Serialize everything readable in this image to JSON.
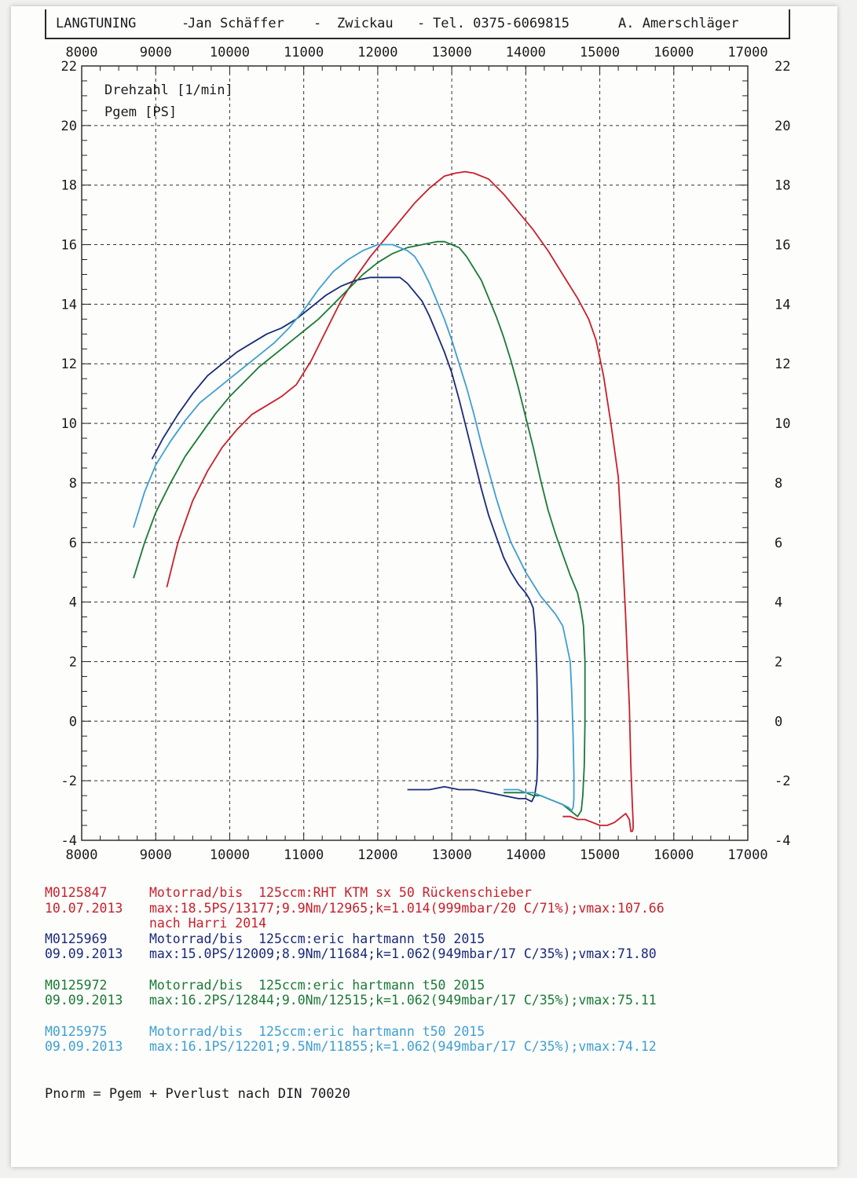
{
  "header": {
    "company": "LANGTUNING",
    "sep1": "-",
    "person": "Jan Schäffer",
    "sep2": "-",
    "city": "Zwickau",
    "sep3": "-",
    "phone": "Tel. 0375-6069815",
    "operator": "A. Amerschläger"
  },
  "chart_data": {
    "type": "line",
    "labels": [
      "Drehzahl [1/min]",
      "Pgem [PS]"
    ],
    "xlim": [
      8000,
      17000
    ],
    "ylim": [
      -4,
      22
    ],
    "x_ticks": [
      "8000",
      "9000",
      "10000",
      "11000",
      "12000",
      "13000",
      "14000",
      "15000",
      "16000",
      "17000"
    ],
    "y_ticks": [
      "-4",
      "-2",
      "0",
      "2",
      "4",
      "6",
      "8",
      "10",
      "12",
      "14",
      "16",
      "18",
      "20",
      "22"
    ],
    "grid": true,
    "series": [
      {
        "name": "M0125847",
        "color": "#c8202a",
        "x": [
          9150,
          9300,
          9500,
          9700,
          9900,
          10100,
          10300,
          10500,
          10700,
          10900,
          11100,
          11300,
          11500,
          11700,
          11900,
          12100,
          12300,
          12500,
          12700,
          12900,
          13050,
          13180,
          13300,
          13500,
          13700,
          13900,
          14100,
          14300,
          14500,
          14700,
          14850,
          14950,
          15050,
          15150,
          15250,
          15300,
          15350,
          15400,
          15420,
          15440,
          15450,
          15450,
          15440,
          15420,
          15400,
          15350,
          15300,
          15200,
          15100,
          15000,
          14900,
          14800,
          14700,
          14600,
          14500
        ],
        "y": [
          4.5,
          6.0,
          7.4,
          8.4,
          9.2,
          9.8,
          10.3,
          10.6,
          10.9,
          11.3,
          12.1,
          13.1,
          14.1,
          14.9,
          15.6,
          16.2,
          16.8,
          17.4,
          17.9,
          18.3,
          18.4,
          18.45,
          18.4,
          18.2,
          17.7,
          17.1,
          16.5,
          15.8,
          15.0,
          14.2,
          13.5,
          12.8,
          11.6,
          10.0,
          8.2,
          6.0,
          3.5,
          0.5,
          -1.5,
          -2.8,
          -3.4,
          -3.6,
          -3.7,
          -3.7,
          -3.3,
          -3.1,
          -3.2,
          -3.4,
          -3.5,
          -3.5,
          -3.4,
          -3.3,
          -3.3,
          -3.2,
          -3.2
        ]
      },
      {
        "name": "M0125969",
        "color": "#1a2a78",
        "x": [
          8950,
          9100,
          9300,
          9500,
          9700,
          9900,
          10100,
          10300,
          10500,
          10700,
          10900,
          11100,
          11300,
          11500,
          11700,
          11900,
          12100,
          12300,
          12400,
          12500,
          12600,
          12700,
          12800,
          12900,
          13000,
          13100,
          13200,
          13300,
          13400,
          13500,
          13600,
          13700,
          13800,
          13900,
          14000,
          14050,
          14100,
          14130,
          14150,
          14160,
          14160,
          14150,
          14120,
          14080,
          14000,
          13900,
          13700,
          13500,
          13300,
          13100,
          12900,
          12700,
          12400
        ],
        "y": [
          8.8,
          9.5,
          10.3,
          11.0,
          11.6,
          12.0,
          12.4,
          12.7,
          13.0,
          13.2,
          13.5,
          13.9,
          14.3,
          14.6,
          14.8,
          14.9,
          14.9,
          14.9,
          14.7,
          14.4,
          14.1,
          13.6,
          13.0,
          12.4,
          11.7,
          10.8,
          9.8,
          8.8,
          7.8,
          6.9,
          6.2,
          5.5,
          5.0,
          4.6,
          4.3,
          4.1,
          3.8,
          3.0,
          1.5,
          0.0,
          -1.2,
          -2.0,
          -2.5,
          -2.7,
          -2.6,
          -2.6,
          -2.5,
          -2.4,
          -2.3,
          -2.3,
          -2.2,
          -2.3,
          -2.3
        ]
      },
      {
        "name": "M0125972",
        "color": "#1b7a35",
        "x": [
          8700,
          8850,
          9000,
          9200,
          9400,
          9600,
          9800,
          10000,
          10200,
          10400,
          10600,
          10800,
          11000,
          11200,
          11400,
          11600,
          11800,
          12000,
          12200,
          12400,
          12600,
          12800,
          12900,
          13000,
          13100,
          13200,
          13300,
          13400,
          13500,
          13600,
          13700,
          13800,
          13900,
          14000,
          14100,
          14200,
          14300,
          14400,
          14500,
          14600,
          14700,
          14750,
          14780,
          14800,
          14800,
          14790,
          14770,
          14750,
          14700,
          14600,
          14500,
          14400,
          14300,
          14200,
          14100,
          14000,
          13900,
          13800,
          13700
        ],
        "y": [
          4.8,
          6.0,
          7.0,
          8.0,
          8.9,
          9.6,
          10.3,
          10.9,
          11.4,
          11.9,
          12.3,
          12.7,
          13.1,
          13.5,
          14.0,
          14.5,
          15.0,
          15.4,
          15.7,
          15.9,
          16.0,
          16.1,
          16.1,
          16.0,
          15.9,
          15.6,
          15.2,
          14.8,
          14.2,
          13.6,
          12.9,
          12.1,
          11.2,
          10.2,
          9.2,
          8.1,
          7.1,
          6.3,
          5.6,
          4.9,
          4.3,
          3.7,
          3.2,
          2.0,
          0.0,
          -1.5,
          -2.5,
          -3.0,
          -3.2,
          -3.0,
          -2.8,
          -2.7,
          -2.6,
          -2.5,
          -2.5,
          -2.4,
          -2.4,
          -2.4,
          -2.4
        ]
      },
      {
        "name": "M0125975",
        "color": "#3f9fd0",
        "x": [
          8700,
          8850,
          9000,
          9200,
          9400,
          9600,
          9800,
          10000,
          10200,
          10400,
          10600,
          10800,
          11000,
          11200,
          11400,
          11600,
          11800,
          12000,
          12200,
          12400,
          12500,
          12600,
          12700,
          12800,
          12900,
          13000,
          13100,
          13200,
          13300,
          13400,
          13500,
          13600,
          13700,
          13800,
          13900,
          14000,
          14100,
          14200,
          14300,
          14400,
          14500,
          14550,
          14600,
          14620,
          14640,
          14650,
          14650,
          14640,
          14620,
          14580,
          14500,
          14400,
          14300,
          14200,
          14100,
          14000,
          13900,
          13800,
          13700
        ],
        "y": [
          6.5,
          7.7,
          8.6,
          9.4,
          10.1,
          10.7,
          11.1,
          11.5,
          11.9,
          12.3,
          12.7,
          13.2,
          13.8,
          14.5,
          15.1,
          15.5,
          15.8,
          16.0,
          16.0,
          15.8,
          15.6,
          15.2,
          14.7,
          14.1,
          13.5,
          12.8,
          12.0,
          11.2,
          10.3,
          9.3,
          8.4,
          7.5,
          6.7,
          6.0,
          5.5,
          5.0,
          4.6,
          4.2,
          3.9,
          3.6,
          3.2,
          2.6,
          2.0,
          1.0,
          -0.5,
          -1.8,
          -2.6,
          -2.9,
          -3.0,
          -2.9,
          -2.8,
          -2.7,
          -2.6,
          -2.5,
          -2.4,
          -2.4,
          -2.3,
          -2.3,
          -2.3
        ]
      }
    ]
  },
  "legend": [
    {
      "id": "M0125847",
      "date": "10.07.2013",
      "desc": "Motorrad/bis  125ccm:RHT KTM sx 50 Rückenschieber",
      "stats": "max:18.5PS/13177;9.9Nm/12965;k=1.014(999mbar/20 C/71%);vmax:107.66",
      "note": "nach Harri 2014",
      "color": "#c8202a"
    },
    {
      "id": "M0125969",
      "date": "09.09.2013",
      "desc": "Motorrad/bis  125ccm:eric hartmann t50 2015",
      "stats": "max:15.0PS/12009;8.9Nm/11684;k=1.062(949mbar/17 C/35%);vmax:71.80",
      "note": "",
      "color": "#1a2a78"
    },
    {
      "id": "M0125972",
      "date": "09.09.2013",
      "desc": "Motorrad/bis  125ccm:eric hartmann t50 2015",
      "stats": "max:16.2PS/12844;9.0Nm/12515;k=1.062(949mbar/17 C/35%);vmax:75.11",
      "note": "",
      "color": "#1b7a35"
    },
    {
      "id": "M0125975",
      "date": "09.09.2013",
      "desc": "Motorrad/bis  125ccm:eric hartmann t50 2015",
      "stats": "max:16.1PS/12201;9.5Nm/11855;k=1.062(949mbar/17 C/35%);vmax:74.12",
      "note": "",
      "color": "#3f9fd0"
    }
  ],
  "footnote": "Pnorm = Pgem + Pverlust nach DIN 70020"
}
